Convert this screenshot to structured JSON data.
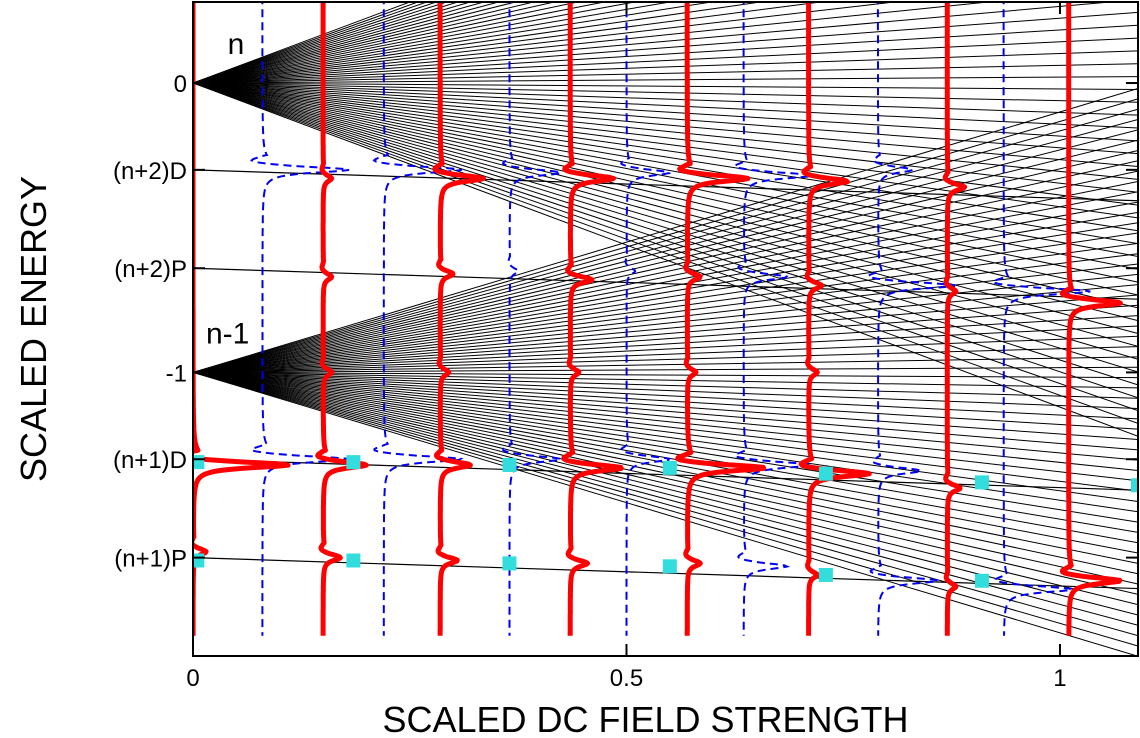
{
  "chart_data": {
    "type": "line",
    "xlabel": "SCALED DC FIELD STRENGTH",
    "ylabel": "SCALED ENERGY",
    "xlim": [
      0,
      1.09
    ],
    "ylim": [
      -1.98,
      0.28
    ],
    "x_ticks": [
      {
        "value": 0,
        "label": "0"
      },
      {
        "value": 0.5,
        "label": "0.5"
      },
      {
        "value": 1,
        "label": "1"
      }
    ],
    "y_ticks": [
      {
        "value": 0,
        "label": "0"
      },
      {
        "value": -0.3,
        "label": "(n+2)D"
      },
      {
        "value": -0.64,
        "label": "(n+2)P"
      },
      {
        "value": -1,
        "label": "-1"
      },
      {
        "value": -1.3,
        "label": "(n+1)D"
      },
      {
        "value": -1.64,
        "label": "(n+1)P"
      }
    ],
    "annotations": [
      {
        "text": "n",
        "x": 0.04,
        "y": 0.1
      },
      {
        "text": "n-1",
        "x": 0.015,
        "y": -0.9
      }
    ],
    "manifolds": [
      {
        "name": "n",
        "center": 0,
        "lines": 56,
        "slope_max": 1.12
      },
      {
        "name": "n-1",
        "center": -1,
        "lines": 56,
        "slope_max": 0.9
      }
    ],
    "quantum_defect_levels": [
      {
        "label": "(n+2)D",
        "energy": -0.3
      },
      {
        "label": "(n+2)P",
        "energy": -0.64
      },
      {
        "label": "(n+1)D",
        "energy": -1.3
      },
      {
        "label": "(n+1)P",
        "energy": -1.64
      }
    ],
    "series": [
      {
        "style": "thick-solid-red",
        "traces": [
          {
            "x0": 0.0,
            "peaks": [
              {
                "y": -1.32,
                "a": 0.11
              },
              {
                "y": -1.62,
                "a": 0.015
              }
            ]
          },
          {
            "x0": 0.15,
            "peaks": [
              {
                "y": -0.33,
                "a": 0.01
              },
              {
                "y": -0.67,
                "a": 0.01
              },
              {
                "y": -1.0,
                "a": 0.01
              },
              {
                "y": -1.32,
                "a": 0.05
              },
              {
                "y": -1.64,
                "a": 0.02
              }
            ]
          },
          {
            "x0": 0.285,
            "peaks": [
              {
                "y": -0.33,
                "a": 0.05
              },
              {
                "y": -0.66,
                "a": 0.015
              },
              {
                "y": -1.0,
                "a": 0.01
              },
              {
                "y": -1.32,
                "a": 0.035
              },
              {
                "y": -1.65,
                "a": 0.02
              }
            ]
          },
          {
            "x0": 0.435,
            "peaks": [
              {
                "y": -0.33,
                "a": 0.05
              },
              {
                "y": -0.68,
                "a": 0.025
              },
              {
                "y": -1.0,
                "a": 0.01
              },
              {
                "y": -1.33,
                "a": 0.06
              },
              {
                "y": -1.66,
                "a": 0.02
              }
            ]
          },
          {
            "x0": 0.57,
            "peaks": [
              {
                "y": -0.33,
                "a": 0.07
              },
              {
                "y": -0.67,
                "a": 0.015
              },
              {
                "y": -1.0,
                "a": 0.01
              },
              {
                "y": -1.33,
                "a": 0.09
              },
              {
                "y": -1.66,
                "a": 0.015
              }
            ]
          },
          {
            "x0": 0.71,
            "peaks": [
              {
                "y": -0.34,
                "a": 0.045
              },
              {
                "y": -0.7,
                "a": 0.015
              },
              {
                "y": -1.0,
                "a": 0.01
              },
              {
                "y": -1.35,
                "a": 0.07
              },
              {
                "y": -1.7,
                "a": 0.01
              }
            ]
          },
          {
            "x0": 0.87,
            "peaks": [
              {
                "y": -0.36,
                "a": 0.02
              },
              {
                "y": -0.72,
                "a": 0.01
              },
              {
                "y": -1.4,
                "a": 0.015
              },
              {
                "y": -1.74,
                "a": 0.01
              }
            ]
          },
          {
            "x0": 1.01,
            "peaks": [
              {
                "y": -0.76,
                "a": 0.06
              },
              {
                "y": -1.72,
                "a": 0.06
              }
            ]
          }
        ]
      },
      {
        "style": "dashed-blue",
        "traces": [
          {
            "x0": 0.08,
            "peaks": [
              {
                "y": -0.3,
                "a": 0.1
              },
              {
                "y": -1.3,
                "a": 0.1
              }
            ]
          },
          {
            "x0": 0.22,
            "peaks": [
              {
                "y": -0.3,
                "a": 0.09
              },
              {
                "y": -1.3,
                "a": 0.09
              }
            ]
          },
          {
            "x0": 0.365,
            "peaks": [
              {
                "y": -0.31,
                "a": 0.06
              },
              {
                "y": -0.65,
                "a": 0.01
              },
              {
                "y": -1.3,
                "a": 0.06
              }
            ]
          },
          {
            "x0": 0.5,
            "peaks": [
              {
                "y": -0.31,
                "a": 0.05
              },
              {
                "y": -0.65,
                "a": 0.01
              },
              {
                "y": -1.3,
                "a": 0.05
              }
            ]
          },
          {
            "x0": 0.635,
            "peaks": [
              {
                "y": -0.32,
                "a": 0.08
              },
              {
                "y": -0.67,
                "a": 0.05
              },
              {
                "y": -1.32,
                "a": 0.08
              },
              {
                "y": -1.67,
                "a": 0.05
              }
            ]
          },
          {
            "x0": 0.79,
            "peaks": [
              {
                "y": -0.3,
                "a": 0.04
              },
              {
                "y": -0.7,
                "a": 0.09
              },
              {
                "y": -1.34,
                "a": 0.05
              },
              {
                "y": -1.72,
                "a": 0.07
              }
            ]
          },
          {
            "x0": 0.935,
            "peaks": [
              {
                "y": -0.72,
                "a": 0.1
              },
              {
                "y": -1.75,
                "a": 0.08
              }
            ]
          }
        ]
      }
    ],
    "markers": [
      {
        "x": 0.005,
        "y": -1.31
      },
      {
        "x": 0.005,
        "y": -1.65
      },
      {
        "x": 0.185,
        "y": -1.31
      },
      {
        "x": 0.185,
        "y": -1.65
      },
      {
        "x": 0.365,
        "y": -1.32
      },
      {
        "x": 0.365,
        "y": -1.66
      },
      {
        "x": 0.55,
        "y": -1.33
      },
      {
        "x": 0.55,
        "y": -1.67
      },
      {
        "x": 0.73,
        "y": -1.35
      },
      {
        "x": 0.73,
        "y": -1.7
      },
      {
        "x": 0.91,
        "y": -1.38
      },
      {
        "x": 0.91,
        "y": -1.72
      },
      {
        "x": 1.09,
        "y": -1.39
      }
    ],
    "colors": {
      "manifold": "#000000",
      "solid_trace": "#ff0000",
      "dashed_trace": "#0000ee",
      "marker": "#33dddd"
    },
    "grid": false,
    "legend": "none"
  }
}
